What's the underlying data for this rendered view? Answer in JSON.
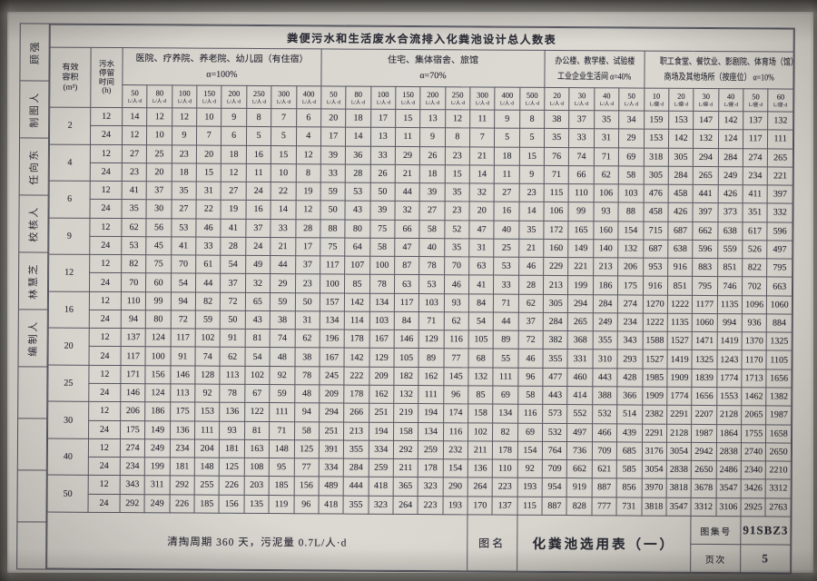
{
  "sidebar": {
    "labels": [
      "顾强",
      "制图人",
      "任向东",
      "校核人",
      "林慧芝",
      "编制人"
    ]
  },
  "table": {
    "title": "粪便污水和生活废水合流排入化粪池设计总人数表",
    "volume_header_lines": [
      "有效",
      "容积",
      "(m³)"
    ],
    "time_header_lines": [
      "污水",
      "停留",
      "时间",
      "(h)"
    ],
    "groups": [
      {
        "name_lines": [
          "医院、疗养院、养老院、幼儿园（有住宿）",
          "α=100%"
        ],
        "unit": "L/人·d",
        "columns": [
          50,
          80,
          100,
          150,
          200,
          250,
          300,
          400
        ]
      },
      {
        "name_lines": [
          "住宅、集体宿舍、旅馆",
          "α=70%"
        ],
        "unit": "L/人·d",
        "columns": [
          50,
          80,
          100,
          150,
          200,
          250,
          300,
          400,
          500
        ]
      },
      {
        "name_lines": [
          "办公楼、教学楼、试验楼",
          "工业企业生活间 α=40%"
        ],
        "unit": "L/人·d",
        "columns": [
          20,
          30,
          40,
          50
        ]
      },
      {
        "name_lines": [
          "职工食堂、餐饮业、影剧院、体育场（馆）",
          "商场及其他场所（按座位） α=10%"
        ],
        "unit": "L/座·d",
        "columns": [
          10,
          20,
          30,
          40,
          50,
          60
        ]
      }
    ],
    "volumes": [
      {
        "volume": "2",
        "rows": [
          {
            "time": "12",
            "values": [
              14,
              12,
              12,
              10,
              9,
              8,
              7,
              6,
              20,
              18,
              17,
              15,
              13,
              12,
              11,
              9,
              8,
              38,
              37,
              35,
              34,
              159,
              153,
              147,
              142,
              137,
              132
            ]
          },
          {
            "time": "24",
            "values": [
              12,
              10,
              9,
              7,
              6,
              5,
              5,
              4,
              17,
              14,
              13,
              11,
              9,
              8,
              7,
              5,
              5,
              35,
              33,
              31,
              29,
              153,
              142,
              132,
              124,
              117,
              111
            ]
          }
        ]
      },
      {
        "volume": "4",
        "rows": [
          {
            "time": "12",
            "values": [
              27,
              25,
              23,
              20,
              18,
              16,
              15,
              12,
              39,
              36,
              33,
              29,
              26,
              23,
              21,
              18,
              15,
              76,
              74,
              71,
              69,
              318,
              305,
              294,
              284,
              274,
              265
            ]
          },
          {
            "time": "24",
            "values": [
              23,
              20,
              18,
              15,
              12,
              11,
              10,
              8,
              33,
              28,
              26,
              21,
              18,
              15,
              14,
              11,
              9,
              71,
              66,
              62,
              58,
              305,
              284,
              265,
              249,
              234,
              221
            ]
          }
        ]
      },
      {
        "volume": "6",
        "rows": [
          {
            "time": "12",
            "values": [
              41,
              37,
              35,
              31,
              27,
              24,
              22,
              19,
              59,
              53,
              50,
              44,
              39,
              35,
              32,
              27,
              23,
              115,
              110,
              106,
              103,
              476,
              458,
              441,
              426,
              411,
              397
            ]
          },
          {
            "time": "24",
            "values": [
              35,
              30,
              27,
              22,
              19,
              16,
              14,
              12,
              50,
              43,
              39,
              32,
              27,
              23,
              20,
              16,
              14,
              106,
              99,
              93,
              88,
              458,
              426,
              397,
              373,
              351,
              332
            ]
          }
        ]
      },
      {
        "volume": "9",
        "rows": [
          {
            "time": "12",
            "values": [
              62,
              56,
              53,
              46,
              41,
              37,
              33,
              28,
              88,
              80,
              75,
              66,
              58,
              52,
              47,
              40,
              35,
              172,
              165,
              160,
              154,
              715,
              687,
              662,
              638,
              617,
              596
            ]
          },
          {
            "time": "24",
            "values": [
              53,
              45,
              41,
              33,
              28,
              24,
              21,
              17,
              75,
              64,
              58,
              47,
              40,
              35,
              31,
              25,
              21,
              160,
              149,
              140,
              132,
              687,
              638,
              596,
              559,
              526,
              497
            ]
          }
        ]
      },
      {
        "volume": "12",
        "rows": [
          {
            "time": "12",
            "values": [
              82,
              75,
              70,
              61,
              54,
              49,
              44,
              37,
              117,
              107,
              100,
              87,
              78,
              70,
              63,
              53,
              46,
              229,
              221,
              213,
              206,
              953,
              916,
              883,
              851,
              822,
              795
            ]
          },
          {
            "time": "24",
            "values": [
              70,
              60,
              54,
              44,
              37,
              32,
              29,
              23,
              100,
              85,
              78,
              63,
              53,
              46,
              41,
              33,
              28,
              213,
              199,
              186,
              175,
              916,
              851,
              795,
              746,
              702,
              663
            ]
          }
        ]
      },
      {
        "volume": "16",
        "rows": [
          {
            "time": "12",
            "values": [
              110,
              99,
              94,
              82,
              72,
              65,
              59,
              50,
              157,
              142,
              134,
              117,
              103,
              93,
              84,
              71,
              62,
              305,
              294,
              284,
              274,
              1270,
              1222,
              1177,
              1135,
              1096,
              1060
            ]
          },
          {
            "time": "24",
            "values": [
              94,
              80,
              72,
              59,
              50,
              43,
              38,
              31,
              134,
              114,
              103,
              84,
              71,
              62,
              54,
              44,
              37,
              284,
              265,
              249,
              234,
              1222,
              1135,
              1060,
              994,
              936,
              884
            ]
          }
        ]
      },
      {
        "volume": "20",
        "rows": [
          {
            "time": "12",
            "values": [
              137,
              124,
              117,
              102,
              91,
              81,
              74,
              62,
              196,
              178,
              167,
              146,
              129,
              116,
              105,
              89,
              72,
              382,
              368,
              355,
              343,
              1588,
              1527,
              1471,
              1419,
              1370,
              1325
            ]
          },
          {
            "time": "24",
            "values": [
              117,
              100,
              91,
              74,
              62,
              54,
              48,
              38,
              167,
              142,
              129,
              105,
              89,
              77,
              68,
              55,
              46,
              355,
              331,
              310,
              293,
              1527,
              1419,
              1325,
              1243,
              1170,
              1105
            ]
          }
        ]
      },
      {
        "volume": "25",
        "rows": [
          {
            "time": "12",
            "values": [
              171,
              156,
              146,
              128,
              113,
              102,
              92,
              78,
              245,
              222,
              209,
              182,
              162,
              145,
              132,
              111,
              96,
              477,
              460,
              443,
              428,
              1985,
              1909,
              1839,
              1774,
              1713,
              1656
            ]
          },
          {
            "time": "24",
            "values": [
              146,
              124,
              113,
              92,
              78,
              67,
              59,
              48,
              209,
              178,
              162,
              132,
              111,
              96,
              85,
              69,
              58,
              443,
              414,
              388,
              366,
              1909,
              1774,
              1656,
              1553,
              1462,
              1382
            ]
          }
        ]
      },
      {
        "volume": "30",
        "rows": [
          {
            "time": "12",
            "values": [
              206,
              186,
              175,
              153,
              136,
              122,
              111,
              94,
              294,
              266,
              251,
              219,
              194,
              174,
              158,
              134,
              116,
              573,
              552,
              532,
              514,
              2382,
              2291,
              2207,
              2128,
              2065,
              1987
            ]
          },
          {
            "time": "24",
            "values": [
              175,
              149,
              136,
              111,
              93,
              81,
              71,
              58,
              251,
              213,
              194,
              158,
              134,
              116,
              102,
              82,
              69,
              532,
              497,
              466,
              439,
              2291,
              2128,
              1987,
              1864,
              1755,
              1658
            ]
          }
        ]
      },
      {
        "volume": "40",
        "rows": [
          {
            "time": "12",
            "values": [
              274,
              249,
              234,
              204,
              181,
              163,
              148,
              125,
              391,
              355,
              334,
              292,
              259,
              232,
              211,
              178,
              154,
              764,
              736,
              709,
              685,
              3176,
              3054,
              2942,
              2838,
              2740,
              2650
            ]
          },
          {
            "time": "24",
            "values": [
              234,
              199,
              181,
              148,
              125,
              108,
              95,
              77,
              334,
              284,
              259,
              211,
              178,
              154,
              136,
              110,
              92,
              709,
              662,
              621,
              585,
              3054,
              2838,
              2650,
              2486,
              2340,
              2210
            ]
          }
        ]
      },
      {
        "volume": "50",
        "rows": [
          {
            "time": "12",
            "values": [
              343,
              311,
              292,
              255,
              226,
              203,
              185,
              156,
              489,
              444,
              418,
              365,
              323,
              290,
              264,
              223,
              193,
              954,
              919,
              887,
              856,
              3970,
              3818,
              3678,
              3547,
              3426,
              3312
            ]
          },
          {
            "time": "24",
            "values": [
              292,
              249,
              226,
              185,
              156,
              135,
              119,
              96,
              418,
              355,
              323,
              264,
              223,
              193,
              170,
              137,
              115,
              887,
              828,
              777,
              731,
              3818,
              3547,
              3312,
              3106,
              2925,
              2763
            ]
          }
        ]
      }
    ]
  },
  "footer": {
    "note": "清掏周期 360 天，污泥量 0.7L/人·d",
    "drawing_name_label": "图名",
    "drawing_name": "化粪池选用表（一）",
    "atlas_label": "图集号",
    "atlas_no": "91SBZ3",
    "page_label": "页次",
    "page_no": "5"
  }
}
